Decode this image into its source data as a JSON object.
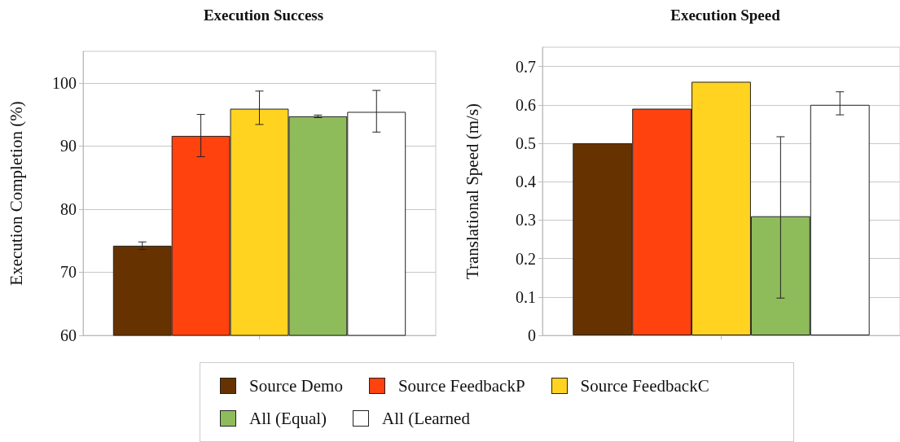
{
  "chart_data": [
    {
      "type": "bar",
      "title": "Execution Success",
      "ylabel": "Execution Completion (%)",
      "categories": [
        null
      ],
      "ylim": [
        60,
        105
      ],
      "yticks": [
        60,
        70,
        80,
        90,
        100
      ],
      "grid": "y",
      "legend": "bottom",
      "series": [
        {
          "name": "Source Demo",
          "color": "#663300",
          "values": [
            74.2
          ],
          "errors": [
            [
              73.6,
              74.8
            ]
          ]
        },
        {
          "name": "Source FeedbackP",
          "color": "#ff420e",
          "values": [
            91.6
          ],
          "errors": [
            [
              88.3,
              95.0
            ]
          ]
        },
        {
          "name": "Source FeedbackC",
          "color": "#ffd320",
          "values": [
            95.9
          ],
          "errors": [
            [
              93.4,
              98.7
            ]
          ]
        },
        {
          "name": "All (Equal)",
          "color": "#8fbc5a",
          "values": [
            94.7
          ],
          "errors": [
            [
              94.5,
              94.9
            ]
          ]
        },
        {
          "name": "All (Learned",
          "color": "#ffffff",
          "values": [
            95.4
          ],
          "errors": [
            [
              92.2,
              98.8
            ]
          ]
        }
      ]
    },
    {
      "type": "bar",
      "title": "Execution Speed",
      "ylabel": "Translational Speed (m/s)",
      "categories": [
        null
      ],
      "ylim": [
        0,
        0.75
      ],
      "yticks": [
        0,
        0.1,
        0.2,
        0.3,
        0.4,
        0.5,
        0.6,
        0.7
      ],
      "grid": "y",
      "series": [
        {
          "name": "Source Demo",
          "color": "#663300",
          "values": [
            0.5
          ]
        },
        {
          "name": "Source FeedbackP",
          "color": "#ff420e",
          "values": [
            0.59
          ]
        },
        {
          "name": "Source FeedbackC",
          "color": "#ffd320",
          "values": [
            0.66
          ]
        },
        {
          "name": "All (Equal)",
          "color": "#8fbc5a",
          "values": [
            0.31
          ],
          "errors": [
            [
              0.097,
              0.517
            ]
          ]
        },
        {
          "name": "All (Learned",
          "color": "#ffffff",
          "values": [
            0.6
          ],
          "errors": [
            [
              0.574,
              0.634
            ]
          ]
        }
      ]
    }
  ]
}
